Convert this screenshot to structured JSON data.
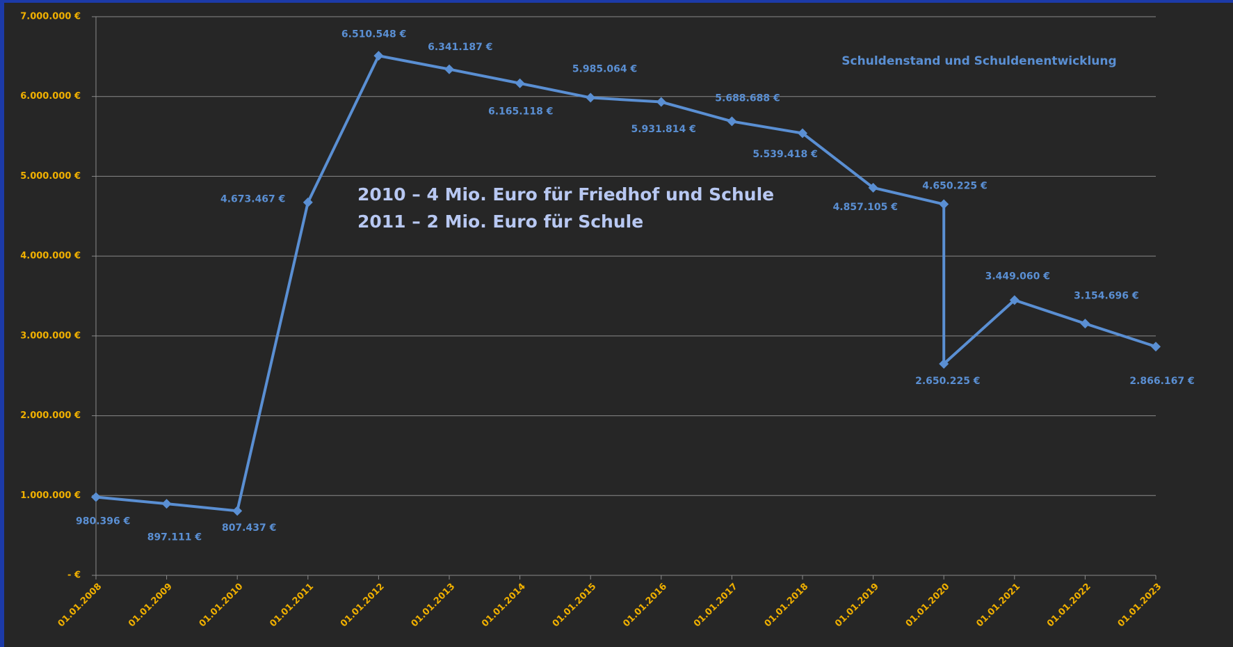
{
  "chart_data": {
    "type": "line",
    "title": "Schuldenstand und Schuldenentwicklung",
    "annotations": [
      "2010 – 4 Mio. Euro für Friedhof und Schule",
      "2011 – 2 Mio. Euro für Schule"
    ],
    "x": [
      "01.01.2008",
      "01.01.2009",
      "01.01.2010",
      "01.01.2011",
      "01.01.2012",
      "01.01.2013",
      "01.01.2014",
      "01.01.2015",
      "01.01.2016",
      "01.01.2017",
      "01.01.2018",
      "01.01.2019",
      "01.01.2020",
      "01.01.2020",
      "01.01.2021",
      "01.01.2022",
      "01.01.2023"
    ],
    "xticks": [
      "01.01.2008",
      "01.01.2009",
      "01.01.2010",
      "01.01.2011",
      "01.01.2012",
      "01.01.2013",
      "01.01.2014",
      "01.01.2015",
      "01.01.2016",
      "01.01.2017",
      "01.01.2018",
      "01.01.2019",
      "01.01.2020",
      "01.01.2021",
      "01.01.2022",
      "01.01.2023"
    ],
    "series": [
      {
        "name": "Schuldenstand",
        "color": "#5a8fd3",
        "values": [
          980396,
          897111,
          807437,
          4673467,
          6510548,
          6341187,
          6165118,
          5985064,
          5931814,
          5688688,
          5539418,
          4857105,
          4650225,
          2650225,
          3449060,
          3154696,
          2866167
        ],
        "value_labels": [
          "980.396 €",
          "897.111 €",
          "807.437 €",
          "4.673.467 €",
          "6.510.548 €",
          "6.341.187 €",
          "6.165.118 €",
          "5.985.064 €",
          "5.931.814 €",
          "5.688.688 €",
          "5.539.418 €",
          "4.857.105 €",
          "4.650.225 €",
          "2.650.225 €",
          "3.449.060 €",
          "3.154.696 €",
          "2.866.167 €"
        ]
      }
    ],
    "ylim": [
      0,
      7000000
    ],
    "yticks": [
      {
        "value": 0,
        "label": "-   €"
      },
      {
        "value": 1000000,
        "label": "1.000.000 €"
      },
      {
        "value": 2000000,
        "label": "2.000.000 €"
      },
      {
        "value": 3000000,
        "label": "3.000.000 €"
      },
      {
        "value": 4000000,
        "label": "4.000.000 €"
      },
      {
        "value": 5000000,
        "label": "5.000.000 €"
      },
      {
        "value": 6000000,
        "label": "6.000.000 €"
      },
      {
        "value": 7000000,
        "label": "7.000.000 €"
      }
    ],
    "grid": true
  }
}
